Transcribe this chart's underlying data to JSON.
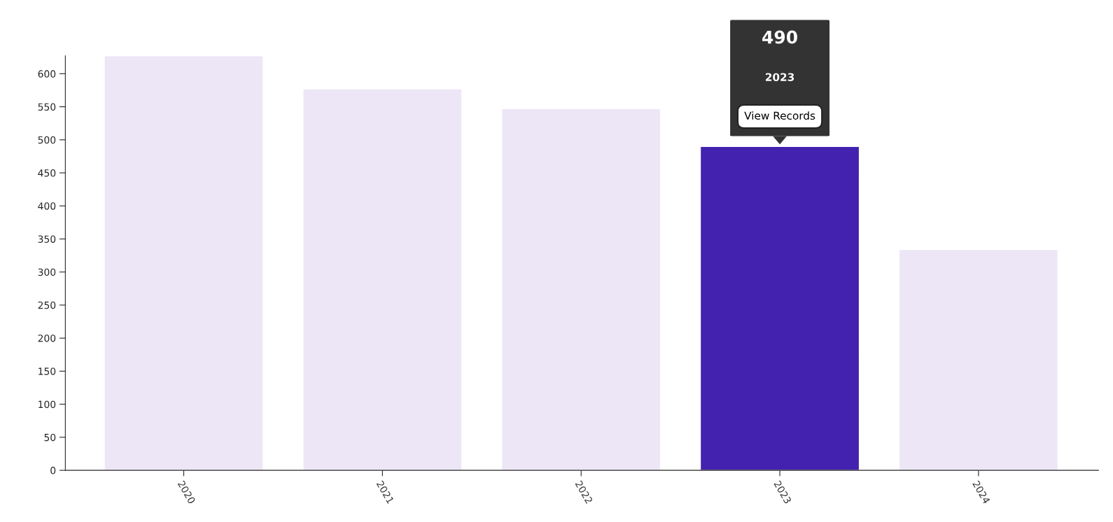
{
  "chart_data": {
    "type": "bar",
    "categories": [
      "2020",
      "2021",
      "2022",
      "2023",
      "2024"
    ],
    "values": [
      627,
      577,
      547,
      490,
      334
    ],
    "colors": [
      "#ede6f6",
      "#ede6f6",
      "#ede6f6",
      "#4222ae",
      "#ede6f6"
    ],
    "ylim": [
      0,
      627
    ],
    "yticks": [
      0,
      50,
      100,
      150,
      200,
      250,
      300,
      350,
      400,
      450,
      500,
      550,
      600
    ],
    "grid": false,
    "annotations": [
      "490",
      "2023",
      {
        "text": "View Records",
        "x": "2023",
        "y": 490
      }
    ]
  }
}
